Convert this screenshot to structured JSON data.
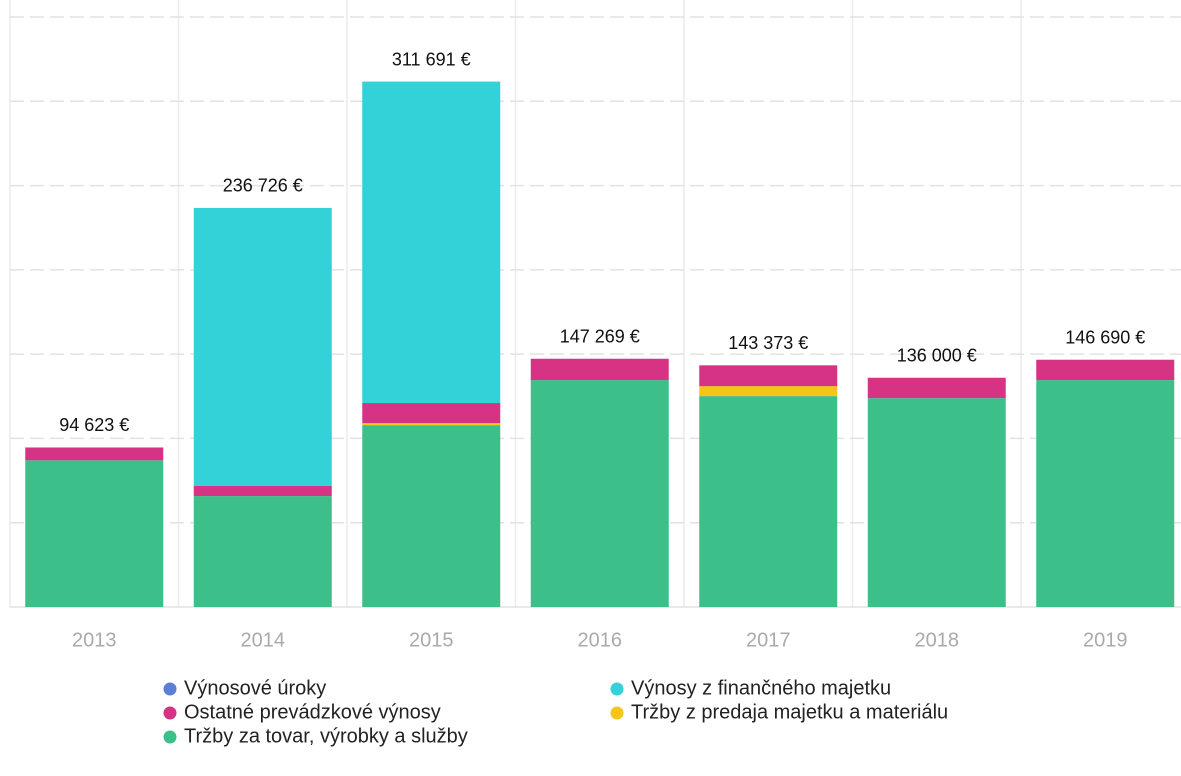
{
  "chart_data": {
    "type": "stacked_bar",
    "categories": [
      "2013",
      "2014",
      "2015",
      "2016",
      "2017",
      "2018",
      "2019"
    ],
    "series": [
      {
        "name": "Výnosové úroky",
        "color": "#5b7fd6",
        "values": [
          0,
          0,
          0,
          0,
          0,
          0,
          0
        ]
      },
      {
        "name": "Výnosy z finančného majetku",
        "color": "#33d1d8",
        "values": [
          0,
          164926,
          190691,
          0,
          0,
          0,
          0
        ]
      },
      {
        "name": "Ostatné prevádzkové výnosy",
        "color": "#d63384",
        "values": [
          7623,
          6000,
          11900,
          12669,
          12373,
          12100,
          12090
        ]
      },
      {
        "name": "Tržby z predaja majetku a materiálu",
        "color": "#f5c518",
        "values": [
          0,
          0,
          1200,
          0,
          5900,
          0,
          0
        ]
      },
      {
        "name": "Tržby za tovar, výrobky a služby",
        "color": "#3dbf8a",
        "values": [
          87000,
          65800,
          107900,
          134600,
          125100,
          123900,
          134600
        ]
      }
    ],
    "totals": [
      94623,
      236726,
      311691,
      147269,
      143373,
      136000,
      146690
    ],
    "total_labels": [
      "94 623 €",
      "236 726 €",
      "311 691 €",
      "147 269 €",
      "143 373 €",
      "136 000 €",
      "146 690 €"
    ],
    "ylim": [
      0,
      350000
    ],
    "yticks": [
      0,
      50000,
      100000,
      150000,
      200000,
      250000,
      300000,
      350000
    ],
    "grid": true
  }
}
